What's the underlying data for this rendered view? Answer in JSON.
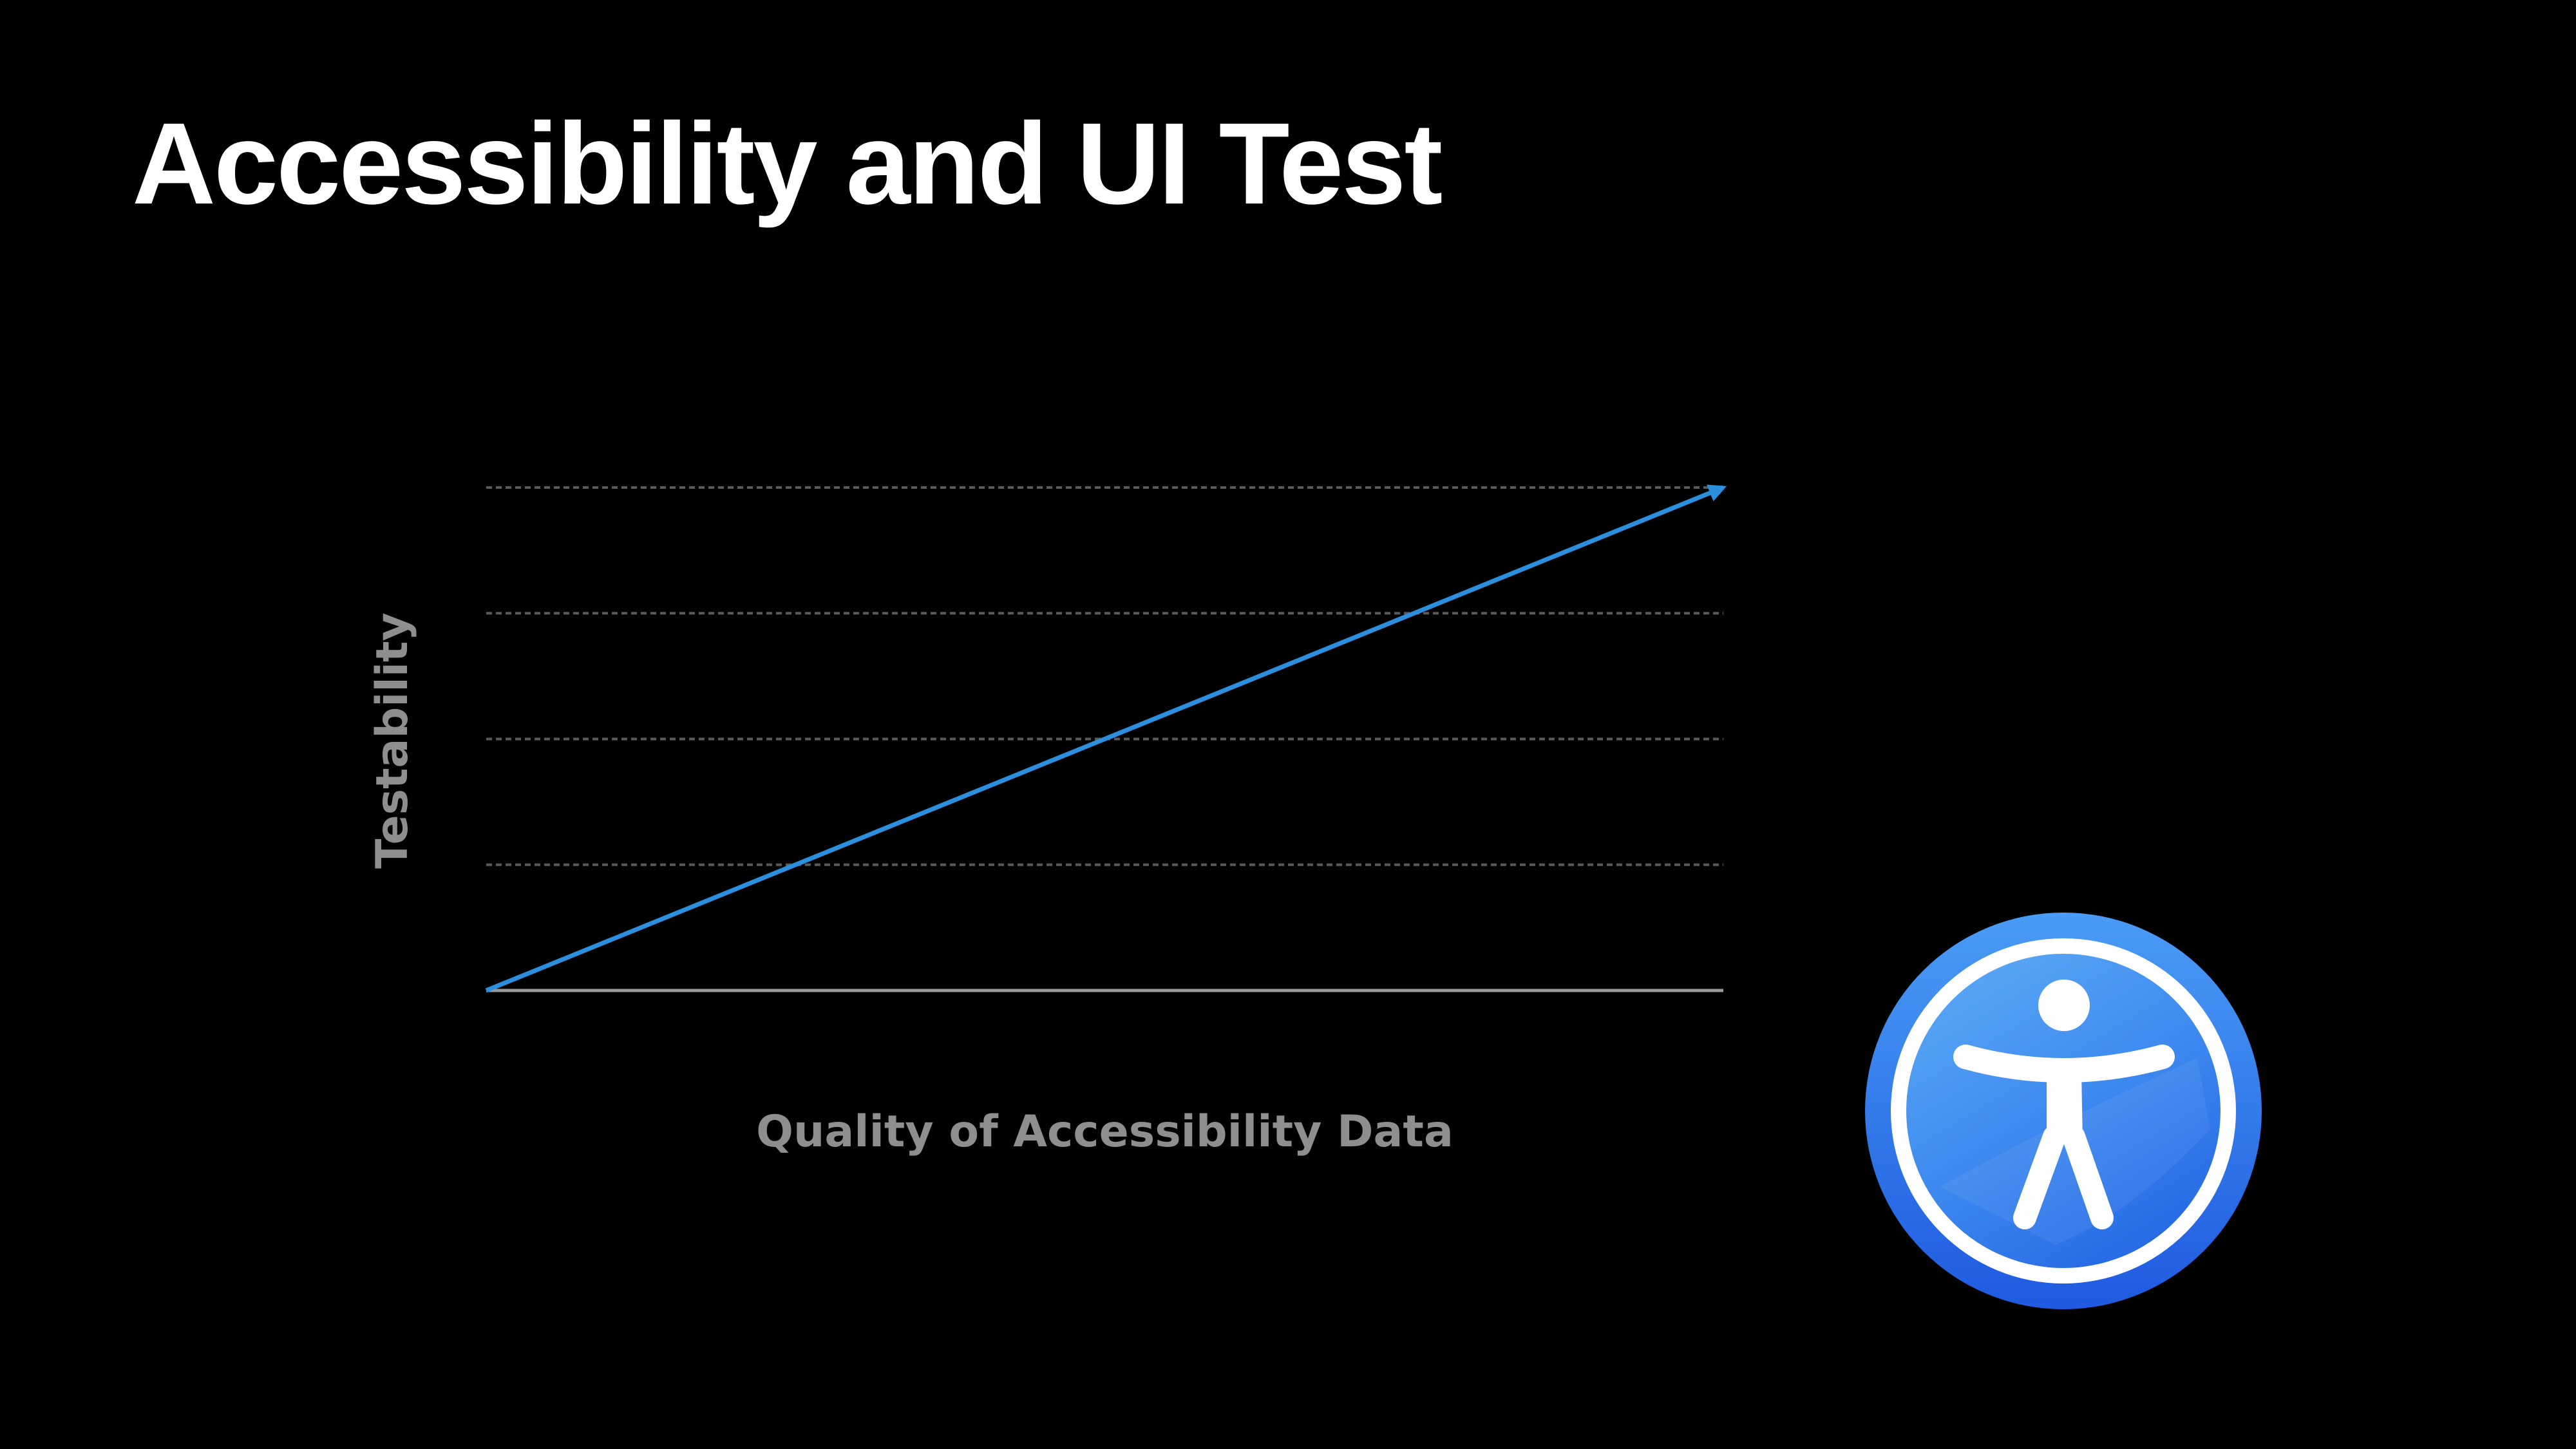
{
  "slide": {
    "title": "Accessibility and UI Test"
  },
  "chart_data": {
    "type": "line",
    "title": "",
    "xlabel": "Quality of Accessibility Data",
    "ylabel": "Testability",
    "xlim": [
      0,
      1
    ],
    "ylim": [
      0,
      4
    ],
    "yticks": [
      0,
      1,
      2,
      3,
      4
    ],
    "grid": true,
    "legend": "none",
    "series": [
      {
        "x": [
          0,
          1
        ],
        "y": [
          0,
          4
        ]
      }
    ],
    "colors": {
      "line": "#2b8fde",
      "grid": "#5a5a5a",
      "baseline": "#9a9a9a",
      "labels": "#8e8e8e"
    }
  },
  "icon": {
    "name": "accessibility-icon",
    "colors": {
      "outer": "#2f72e8",
      "inner": "#4b97f2",
      "figure": "#ffffff"
    }
  }
}
